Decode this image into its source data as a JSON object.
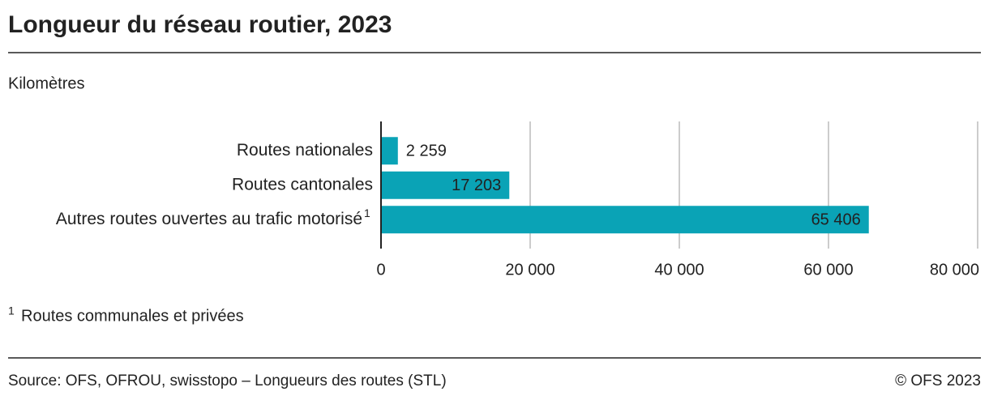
{
  "chart_data": {
    "type": "bar",
    "orientation": "horizontal",
    "title": "Longueur du réseau routier, 2023",
    "subtitle": "Kilomètres",
    "categories": [
      "Routes nationales",
      "Routes cantonales",
      "Autres routes ouvertes au trafic motorisé"
    ],
    "values": [
      2259,
      17203,
      65406
    ],
    "value_labels": [
      "2 259",
      "17 203",
      "65 406"
    ],
    "color": "#0aa3b6",
    "xlim": [
      0,
      80000
    ],
    "xticks": [
      0,
      {
        "value": 20000,
        "label": "20 000"
      },
      {
        "value": 40000,
        "label": "40 000"
      },
      {
        "value": 60000,
        "label": "60 000"
      },
      {
        "value": 80000,
        "label": "80 000"
      }
    ],
    "grid": true,
    "footnote": {
      "marker": "1",
      "text": "Routes communales et privées"
    },
    "source": "Source: OFS, OFROU, swisstopo – Longueurs des routes (STL)",
    "copyright": "© OFS 2023"
  }
}
